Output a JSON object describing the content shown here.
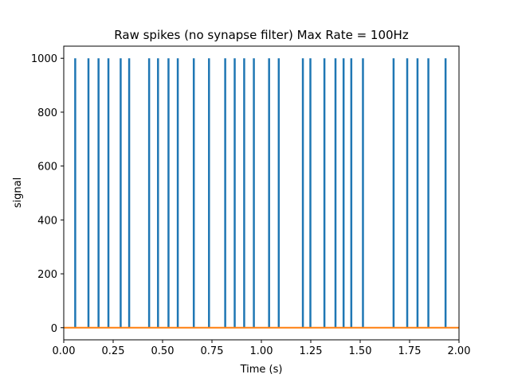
{
  "chart_data": {
    "type": "line",
    "title": "Raw spikes (no synapse filter) Max Rate = 100Hz",
    "xlabel": "Time (s)",
    "ylabel": "signal",
    "xlim": [
      0.0,
      2.0
    ],
    "ylim": [
      -45,
      1045
    ],
    "x_ticks": [
      "0.00",
      "0.25",
      "0.50",
      "0.75",
      "1.00",
      "1.25",
      "1.50",
      "1.75",
      "2.00"
    ],
    "y_ticks": [
      "0",
      "200",
      "400",
      "600",
      "800",
      "1000"
    ],
    "grid": false,
    "series": [
      {
        "color": "#1f77b4",
        "style": "spikes",
        "spike_height": 1000,
        "spike_times": [
          0.058,
          0.125,
          0.176,
          0.226,
          0.288,
          0.331,
          0.432,
          0.477,
          0.53,
          0.577,
          0.658,
          0.735,
          0.817,
          0.865,
          0.913,
          0.962,
          1.039,
          1.088,
          1.21,
          1.248,
          1.319,
          1.375,
          1.416,
          1.455,
          1.514,
          1.669,
          1.738,
          1.79,
          1.845,
          1.932
        ]
      },
      {
        "color": "#ff7f0e",
        "style": "line",
        "x": [
          0.0,
          2.0
        ],
        "values": [
          0,
          0
        ]
      }
    ]
  }
}
